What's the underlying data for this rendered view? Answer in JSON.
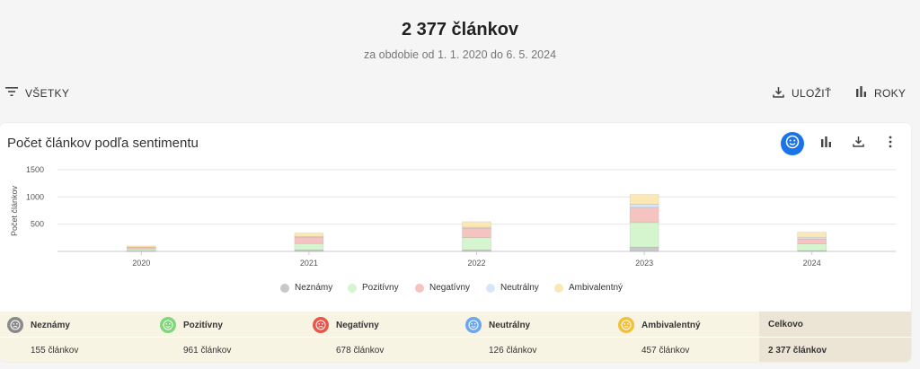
{
  "header": {
    "title": "2 377 článkov",
    "subtitle": "za obdobie od 1. 1. 2020 do 6. 5. 2024"
  },
  "toolbar": {
    "filter_label": "VŠETKY",
    "save_label": "ULOŽIŤ",
    "years_label": "ROKY"
  },
  "card": {
    "title": "Počet článkov podľa sentimentu",
    "icons": [
      "sentiment-face-icon",
      "bar-chart-icon",
      "download-icon",
      "more-vert-icon"
    ]
  },
  "chart_data": {
    "type": "bar",
    "stacked": true,
    "categories": [
      "2020",
      "2021",
      "2022",
      "2023",
      "2024"
    ],
    "ylabel": "Počet článkov",
    "ylim": [
      0,
      1500
    ],
    "yticks": [
      "1500",
      "1000",
      "500"
    ],
    "grid": true,
    "legend_position": "bottom",
    "series": [
      {
        "name": "Neznámy",
        "color": "#c8c8c8",
        "values": [
          10,
          25,
          25,
          80,
          15
        ]
      },
      {
        "name": "Pozitívny",
        "color": "#d5f5cf",
        "values": [
          35,
          120,
          230,
          450,
          126
        ]
      },
      {
        "name": "Negatívny",
        "color": "#f6c4c0",
        "values": [
          25,
          115,
          170,
          280,
          88
        ]
      },
      {
        "name": "Neutrálny",
        "color": "#d8e6fa",
        "values": [
          5,
          15,
          20,
          55,
          31
        ]
      },
      {
        "name": "Ambivalentný",
        "color": "#fbe8b4",
        "values": [
          25,
          60,
          100,
          180,
          92
        ]
      }
    ]
  },
  "summary": {
    "columns": [
      {
        "label": "Neznámy",
        "value": "155 článkov",
        "color": "#8a8a8a"
      },
      {
        "label": "Pozitívny",
        "value": "961 článkov",
        "color": "#7ed87a"
      },
      {
        "label": "Negatívny",
        "value": "678 článkov",
        "color": "#e8564a"
      },
      {
        "label": "Neutrálny",
        "value": "126 článkov",
        "color": "#6aa7ee"
      },
      {
        "label": "Ambivalentný",
        "value": "457 článkov",
        "color": "#f2c13b"
      }
    ],
    "total": {
      "label": "Celkovo",
      "value": "2 377 článkov"
    }
  },
  "colors": {
    "accent": "#1a73e8",
    "summary_bg": "#f8f4e3",
    "total_bg": "#ece4d4"
  }
}
